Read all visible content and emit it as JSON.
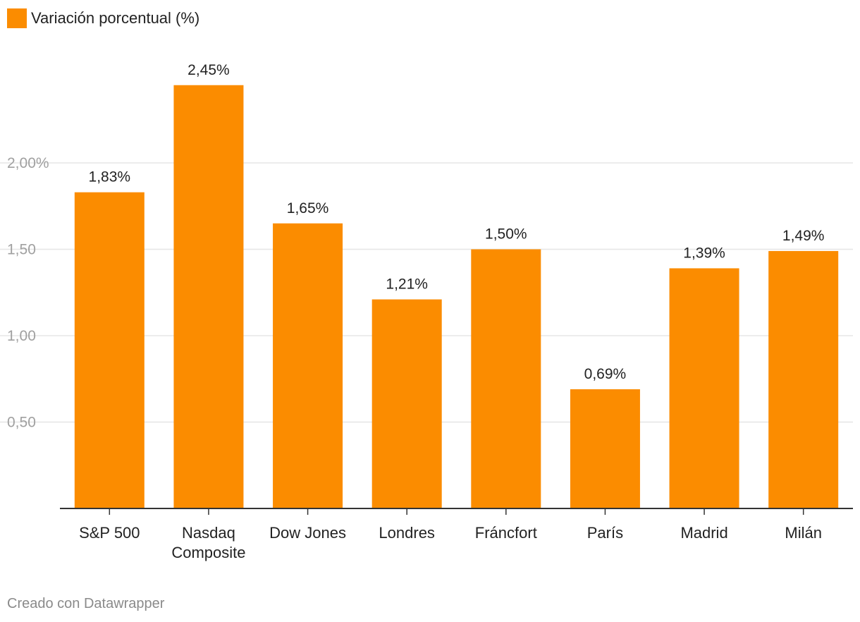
{
  "chart_data": {
    "type": "bar",
    "categories": [
      [
        "S&P 500"
      ],
      [
        "Nasdaq",
        "Composite"
      ],
      [
        "Dow Jones"
      ],
      [
        "Londres"
      ],
      [
        "Fráncfort"
      ],
      [
        "París"
      ],
      [
        "Madrid"
      ],
      [
        "Milán"
      ]
    ],
    "series": [
      {
        "name": "Variación porcentual (%)",
        "values": [
          1.83,
          2.45,
          1.65,
          1.21,
          1.5,
          0.69,
          1.39,
          1.49
        ],
        "labels": [
          "1,83%",
          "2,45%",
          "1,65%",
          "1,21%",
          "1,50%",
          "0,69%",
          "1,39%",
          "1,49%"
        ]
      }
    ],
    "ylim": [
      0,
      2.5
    ],
    "yticks": [
      {
        "value": 0.5,
        "label": "0,50"
      },
      {
        "value": 1.0,
        "label": "1,00"
      },
      {
        "value": 1.5,
        "label": "1,50"
      },
      {
        "value": 2.0,
        "label": "2,00%"
      }
    ],
    "grid": true,
    "legend_position": "top-left",
    "bar_color": "#fb8c00",
    "grid_color": "#e6e6e6",
    "axis_color": "#333333",
    "tick_label_color": "#a0a0a0"
  },
  "legend": {
    "label": "Variación porcentual (%)",
    "color": "#fb8c00"
  },
  "footer": {
    "credit": "Creado con Datawrapper"
  }
}
